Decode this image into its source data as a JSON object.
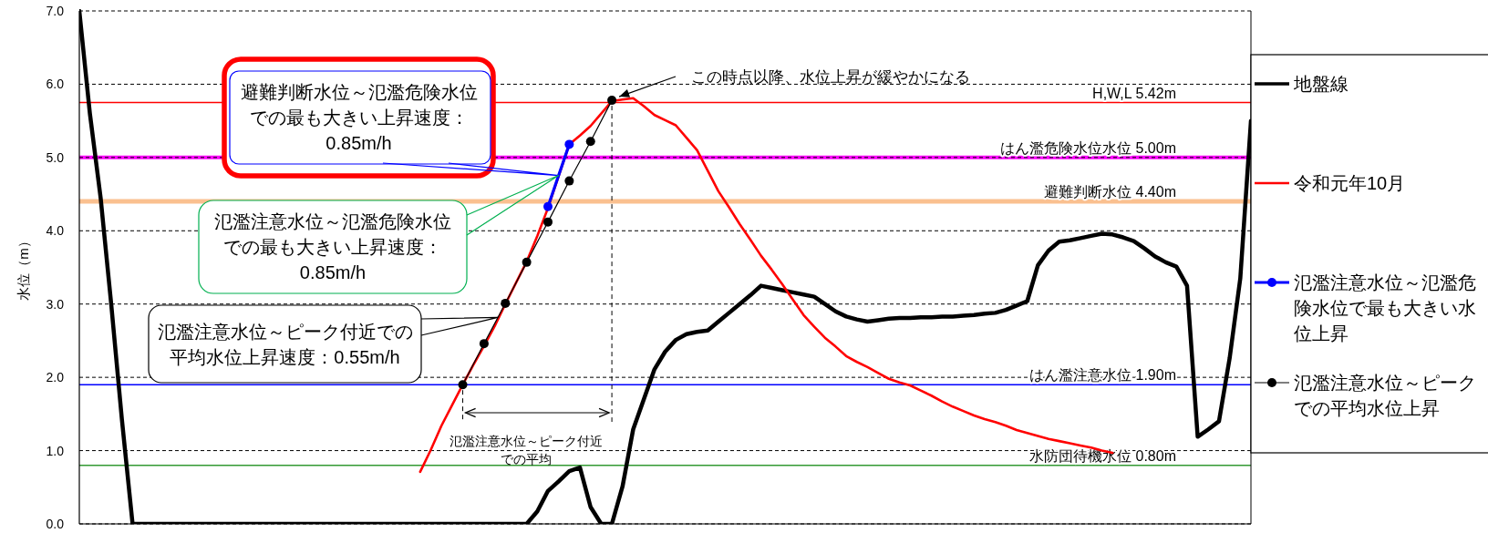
{
  "chart_data": {
    "type": "line",
    "ylabel": "水位（m）",
    "categories": [
      null,
      null,
      null,
      null,
      null,
      null,
      null,
      null,
      null,
      null,
      null,
      null,
      null,
      null,
      null,
      null,
      null,
      null,
      null,
      null,
      null,
      null,
      null,
      null,
      null,
      null,
      null,
      null,
      null,
      null,
      null,
      null,
      null,
      null,
      null,
      null,
      null,
      null,
      null,
      null,
      null,
      null,
      null,
      null,
      null,
      null,
      null,
      null,
      null,
      null,
      null,
      null,
      null,
      null,
      null,
      null,
      null,
      null,
      null,
      null,
      null,
      null,
      null,
      null,
      null,
      null,
      null,
      null,
      null,
      null,
      null,
      null,
      null,
      null,
      null,
      null,
      null,
      null,
      null,
      null,
      null,
      null,
      null,
      null,
      null,
      null,
      null,
      null,
      null,
      null,
      null,
      null,
      null,
      null,
      null,
      null,
      null,
      null,
      null,
      null,
      null,
      null,
      null,
      null,
      null,
      null,
      null,
      null,
      null,
      null,
      null
    ],
    "ylim": [
      0,
      7
    ],
    "yticks": [
      {
        "value": 0,
        "label": "0.0"
      },
      {
        "value": 1,
        "label": "1.0"
      },
      {
        "value": 2,
        "label": "2.0"
      },
      {
        "value": 3,
        "label": "3.0"
      },
      {
        "value": 4,
        "label": "4.0"
      },
      {
        "value": 5,
        "label": "5.0"
      },
      {
        "value": 6,
        "label": "6.0"
      },
      {
        "value": 7,
        "label": "7.0"
      }
    ],
    "tick_labels": "y",
    "grid": "y",
    "legend": "right",
    "series": [
      {
        "name": "地盤線",
        "color": "#000000",
        "values": [
          7.0,
          5.59,
          4.45,
          2.99,
          1.42,
          0.0,
          null,
          null,
          null,
          null,
          null,
          null,
          null,
          null,
          null,
          null,
          null,
          null,
          null,
          null,
          null,
          null,
          null,
          null,
          null,
          null,
          null,
          null,
          null,
          null,
          null,
          null,
          null,
          null,
          null,
          null,
          null,
          null,
          null,
          null,
          null,
          null,
          0.0,
          0.17,
          0.45,
          0.58,
          0.72,
          0.77,
          0.23,
          0.0,
          0.0,
          0.51,
          1.29,
          1.7,
          2.11,
          2.35,
          2.51,
          2.59,
          2.62,
          2.64,
          2.76,
          2.88,
          3.0,
          3.12,
          3.25,
          3.22,
          3.19,
          3.16,
          3.13,
          3.1,
          3.0,
          2.9,
          2.83,
          2.79,
          2.76,
          2.78,
          2.8,
          2.81,
          2.81,
          2.82,
          2.82,
          2.83,
          2.83,
          2.84,
          2.85,
          2.87,
          2.88,
          2.92,
          2.98,
          3.04,
          3.53,
          3.73,
          3.85,
          3.87,
          3.9,
          3.93,
          3.96,
          3.95,
          3.91,
          3.86,
          3.76,
          3.65,
          3.57,
          3.51,
          3.25,
          1.19,
          1.29,
          1.4,
          2.26,
          3.35,
          5.5
        ]
      },
      {
        "name": "令和元年10月",
        "color": "#ff0000",
        "values": [
          null,
          null,
          null,
          null,
          null,
          null,
          null,
          null,
          null,
          null,
          null,
          null,
          null,
          null,
          null,
          null,
          null,
          null,
          null,
          null,
          null,
          null,
          null,
          null,
          null,
          null,
          null,
          null,
          null,
          null,
          null,
          null,
          0.71,
          1.01,
          1.34,
          1.62,
          1.9,
          2.17,
          2.43,
          2.7,
          3.0,
          3.29,
          3.58,
          3.93,
          4.31,
          null,
          5.18,
          5.3,
          5.43,
          5.6,
          5.77,
          5.79,
          5.81,
          5.7,
          5.58,
          5.51,
          5.44,
          5.27,
          5.1,
          4.82,
          4.54,
          4.32,
          4.09,
          3.88,
          3.66,
          3.47,
          3.27,
          3.06,
          2.85,
          2.69,
          2.54,
          2.42,
          2.29,
          2.21,
          2.14,
          2.06,
          1.98,
          1.93,
          1.89,
          1.82,
          1.75,
          1.67,
          1.6,
          1.54,
          1.48,
          1.43,
          1.39,
          1.34,
          1.28,
          1.24,
          1.2,
          1.16,
          1.13,
          1.1,
          1.07,
          1.04,
          1.0,
          0.97,
          null,
          null,
          null,
          null,
          null,
          null,
          null,
          null,
          null,
          null,
          null,
          null,
          null
        ]
      },
      {
        "name": "氾濫注意水位～氾濫危険水位で最も大きい水位上昇",
        "color": "#0000ff",
        "marker": "circle",
        "values": [
          null,
          null,
          null,
          null,
          null,
          null,
          null,
          null,
          null,
          null,
          null,
          null,
          null,
          null,
          null,
          null,
          null,
          null,
          null,
          null,
          null,
          null,
          null,
          null,
          null,
          null,
          null,
          null,
          null,
          null,
          null,
          null,
          null,
          null,
          null,
          null,
          null,
          null,
          null,
          null,
          null,
          null,
          null,
          null,
          4.33,
          null,
          5.18,
          null,
          null,
          null,
          null,
          null,
          null,
          null,
          null,
          null,
          null,
          null,
          null,
          null,
          null,
          null,
          null,
          null,
          null,
          null,
          null,
          null,
          null,
          null,
          null,
          null,
          null,
          null,
          null,
          null,
          null,
          null,
          null,
          null,
          null,
          null,
          null,
          null,
          null,
          null,
          null,
          null,
          null,
          null,
          null,
          null,
          null,
          null,
          null,
          null,
          null,
          null,
          null,
          null,
          null,
          null,
          null,
          null,
          null,
          null,
          null,
          null,
          null,
          null,
          null
        ]
      },
      {
        "name": "氾濫注意水位～ピークでの平均水位上昇",
        "color": "#000000",
        "marker": "circle",
        "values": [
          null,
          null,
          null,
          null,
          null,
          null,
          null,
          null,
          null,
          null,
          null,
          null,
          null,
          null,
          null,
          null,
          null,
          null,
          null,
          null,
          null,
          null,
          null,
          null,
          null,
          null,
          null,
          null,
          null,
          null,
          null,
          null,
          null,
          null,
          null,
          null,
          1.9,
          null,
          2.46,
          null,
          3.01,
          null,
          3.57,
          null,
          4.12,
          null,
          4.68,
          null,
          5.22,
          null,
          5.78,
          null,
          null,
          null,
          null,
          null,
          null,
          null,
          null,
          null,
          null,
          null,
          null,
          null,
          null,
          null,
          null,
          null,
          null,
          null,
          null,
          null,
          null,
          null,
          null,
          null,
          null,
          null,
          null,
          null,
          null,
          null,
          null,
          null,
          null,
          null,
          null,
          null,
          null,
          null,
          null,
          null,
          null,
          null,
          null,
          null,
          null,
          null,
          null,
          null,
          null,
          null,
          null,
          null,
          null,
          null,
          null,
          null,
          null,
          null,
          null
        ]
      }
    ],
    "ref_lines": [
      {
        "axis": "y",
        "value": 5.75,
        "label": "H,W,L 5.42m",
        "color": "#ff0000"
      },
      {
        "axis": "y",
        "value": 5.0,
        "label": "はん濫危険水位水位 5.00m",
        "color": "#ff00ff"
      },
      {
        "axis": "y",
        "value": 4.4,
        "label": "避難判断水位 4.40m",
        "color": "#fac090"
      },
      {
        "axis": "y",
        "value": 1.9,
        "label": "はん濫注意水位 1.90m",
        "color": "#0000ff"
      },
      {
        "axis": "y",
        "value": 0.8,
        "label": "水防団待機水位 0.80m",
        "color": "#339933"
      }
    ],
    "annotations": [
      "避難判断水位～氾濫危険水位での最も大きい上昇速度：0.85m/h",
      "氾濫注意水位～氾濫危険水位での最も大きい上昇速度：0.85m/h",
      "氾濫注意水位～ピーク付近での平均水位上昇速度：0.55m/h",
      "この時点以降、水位上昇が緩やかになる",
      "氾濫注意水位～ピーク付近での平均"
    ]
  }
}
